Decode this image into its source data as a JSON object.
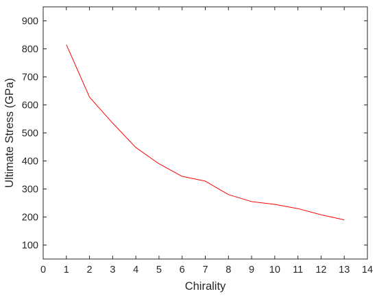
{
  "chart_data": {
    "type": "line",
    "title": "",
    "xlabel": "Chirality",
    "ylabel": "Ultimate Stress (GPa)",
    "xlim": [
      0,
      14
    ],
    "ylim": [
      50,
      950
    ],
    "xticks": [
      0,
      1,
      2,
      3,
      4,
      5,
      6,
      7,
      8,
      9,
      10,
      11,
      12,
      13,
      14
    ],
    "yticks": [
      100,
      200,
      300,
      400,
      500,
      600,
      700,
      800,
      900
    ],
    "grid": false,
    "legend": "none",
    "series": [
      {
        "color": "#ff0000",
        "x": [
          1,
          2,
          3,
          4,
          5,
          6,
          7,
          8,
          9,
          10,
          11,
          12,
          13
        ],
        "y": [
          815,
          628,
          535,
          448,
          390,
          345,
          328,
          280,
          255,
          245,
          230,
          208,
          190
        ]
      }
    ]
  }
}
